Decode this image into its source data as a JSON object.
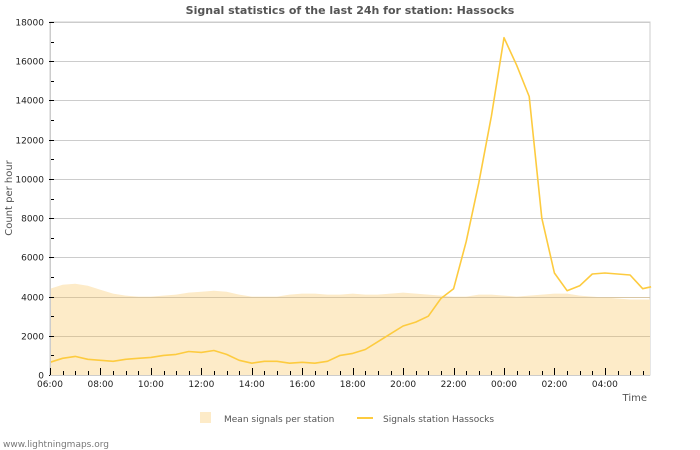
{
  "chart_data": {
    "type": "line",
    "title": "Signal statistics of the last 24h for station: Hassocks",
    "xlabel": "Time",
    "ylabel": "Count per hour",
    "ylim": [
      0,
      18000
    ],
    "yticks": [
      0,
      2000,
      4000,
      6000,
      8000,
      10000,
      12000,
      14000,
      16000,
      18000
    ],
    "xticks": [
      "06:00",
      "08:00",
      "10:00",
      "12:00",
      "14:00",
      "16:00",
      "18:00",
      "20:00",
      "22:00",
      "00:00",
      "02:00",
      "04:00"
    ],
    "grid": true,
    "legend_position": "bottom",
    "x": [
      "06:00",
      "06:30",
      "07:00",
      "07:30",
      "08:00",
      "08:30",
      "09:00",
      "09:30",
      "10:00",
      "10:30",
      "11:00",
      "11:30",
      "12:00",
      "12:30",
      "13:00",
      "13:30",
      "14:00",
      "14:30",
      "15:00",
      "15:30",
      "16:00",
      "16:30",
      "17:00",
      "17:30",
      "18:00",
      "18:30",
      "19:00",
      "19:30",
      "20:00",
      "20:30",
      "21:00",
      "21:30",
      "22:00",
      "22:30",
      "23:00",
      "23:30",
      "00:00",
      "00:30",
      "01:00",
      "01:30",
      "02:00",
      "02:30",
      "03:00",
      "03:30",
      "04:00",
      "04:30",
      "05:00",
      "05:30",
      "05:50"
    ],
    "series": [
      {
        "name": "Mean signals per station",
        "style": "area",
        "color": "#fdebc8",
        "values": [
          4400,
          4600,
          4650,
          4550,
          4350,
          4150,
          4050,
          4000,
          4000,
          4050,
          4100,
          4200,
          4250,
          4300,
          4250,
          4100,
          4000,
          4000,
          4000,
          4100,
          4150,
          4150,
          4100,
          4100,
          4150,
          4100,
          4100,
          4150,
          4200,
          4150,
          4100,
          4050,
          4000,
          4000,
          4100,
          4100,
          4050,
          4000,
          4050,
          4100,
          4150,
          4150,
          4050,
          4000,
          3950,
          3900,
          3850,
          3850,
          3850
        ]
      },
      {
        "name": "Signals station Hassocks",
        "style": "line",
        "color": "#fdcb3f",
        "values": [
          650,
          850,
          950,
          800,
          750,
          700,
          800,
          850,
          900,
          1000,
          1050,
          1200,
          1150,
          1250,
          1050,
          750,
          600,
          700,
          700,
          600,
          650,
          600,
          700,
          1000,
          1100,
          1300,
          1700,
          2100,
          2500,
          2700,
          3000,
          3900,
          4400,
          6800,
          9800,
          13200,
          17200,
          15800,
          14200,
          8000,
          5200,
          4300,
          4550,
          5150,
          5200,
          5150,
          5100,
          4400,
          4500
        ]
      }
    ]
  },
  "legend": {
    "items": [
      {
        "label": "Mean signals per station"
      },
      {
        "label": "Signals station Hassocks"
      }
    ]
  },
  "footer": {
    "credit": "www.lightningmaps.org"
  }
}
